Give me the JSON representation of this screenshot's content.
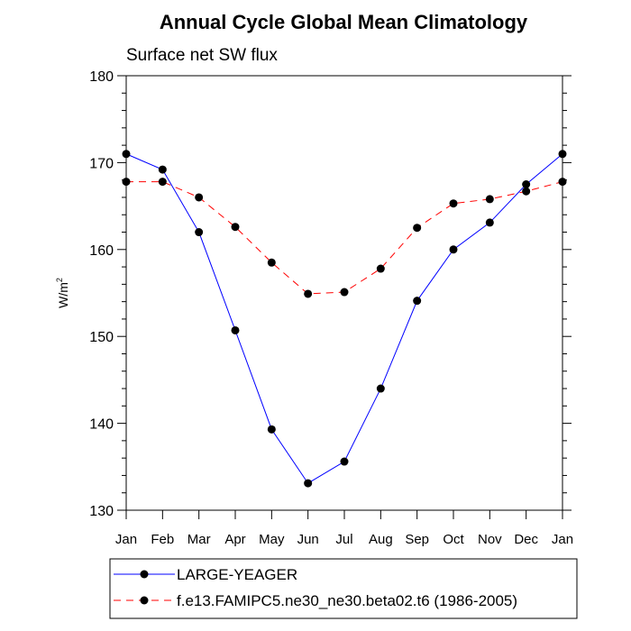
{
  "chart_data": {
    "type": "line",
    "title": "Annual Cycle Global Mean Climatology",
    "subtitle": "Surface net SW flux",
    "ylabel_base": "W/m",
    "ylabel_sup": "2",
    "xlabel": "",
    "categories": [
      "Jan",
      "Feb",
      "Mar",
      "Apr",
      "May",
      "Jun",
      "Jul",
      "Aug",
      "Sep",
      "Oct",
      "Nov",
      "Dec",
      "Jan"
    ],
    "ylim": [
      130,
      180
    ],
    "yticks": [
      130,
      140,
      150,
      160,
      170,
      180
    ],
    "grid": false,
    "legend_position": "bottom",
    "series": [
      {
        "name": "LARGE-YEAGER",
        "color": "#0000ff",
        "dash": "solid",
        "values": [
          171.0,
          169.2,
          162.0,
          150.7,
          139.3,
          133.1,
          135.6,
          144.0,
          154.1,
          160.0,
          163.1,
          167.5,
          171.0
        ]
      },
      {
        "name": "f.e13.FAMIPC5.ne30_ne30.beta02.t6 (1986-2005)",
        "color": "#ff0000",
        "dash": "dashed",
        "values": [
          167.8,
          167.8,
          166.0,
          162.6,
          158.5,
          154.9,
          155.1,
          157.8,
          162.5,
          165.3,
          165.8,
          166.7,
          167.8
        ]
      }
    ]
  }
}
